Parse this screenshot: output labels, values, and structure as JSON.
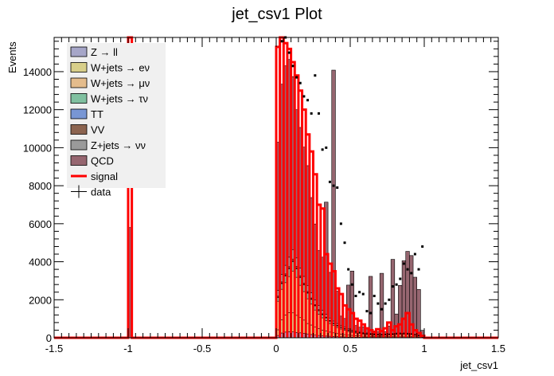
{
  "chart_data": {
    "type": "bar",
    "title": "jet_csv1 Plot",
    "xlabel": "jet_csv1",
    "ylabel": "Events",
    "xlim": [
      -1.5,
      1.5
    ],
    "ylim": [
      0,
      15800
    ],
    "x_ticks": [
      "-1.5",
      "-1",
      "-0.5",
      "0",
      "0.5",
      "1",
      "1.5"
    ],
    "y_ticks": [
      "0",
      "2000",
      "4000",
      "6000",
      "8000",
      "10000",
      "12000",
      "14000"
    ],
    "legend_position": "top-left",
    "bin_width": 0.025,
    "bin_edges_note": "bins of width 0.025 from -1.5 to 1.5",
    "x": [
      -1.0,
      0.0,
      0.025,
      0.05,
      0.075,
      0.1,
      0.125,
      0.15,
      0.175,
      0.2,
      0.225,
      0.25,
      0.275,
      0.3,
      0.325,
      0.35,
      0.375,
      0.4,
      0.425,
      0.45,
      0.475,
      0.5,
      0.525,
      0.55,
      0.575,
      0.6,
      0.625,
      0.65,
      0.675,
      0.7,
      0.725,
      0.75,
      0.775,
      0.8,
      0.825,
      0.85,
      0.875,
      0.9,
      0.925,
      0.95,
      0.975
    ],
    "series": [
      {
        "name": "Z → ll",
        "color": "#a6a6c8",
        "values": [
          0,
          120,
          250,
          300,
          320,
          310,
          280,
          260,
          230,
          200,
          170,
          140,
          120,
          100,
          90,
          80,
          70,
          60,
          50,
          45,
          40,
          35,
          30,
          30,
          25,
          25,
          20,
          20,
          20,
          20,
          20,
          20,
          20,
          20,
          20,
          20,
          20,
          20,
          15,
          15,
          10
        ]
      },
      {
        "name": "W+jets → eν",
        "color": "#d8cf8a",
        "values": [
          0,
          300,
          700,
          900,
          1000,
          1000,
          900,
          800,
          700,
          550,
          500,
          420,
          360,
          300,
          260,
          220,
          190,
          160,
          140,
          120,
          100,
          90,
          80,
          70,
          60,
          55,
          50,
          45,
          45,
          40,
          45,
          45,
          50,
          60,
          60,
          60,
          55,
          50,
          40,
          30,
          20
        ]
      },
      {
        "name": "W+jets → μν",
        "color": "#e4bc8c",
        "values": [
          0,
          1500,
          1600,
          1700,
          1900,
          2200,
          2000,
          1700,
          1500,
          1300,
          1100,
          900,
          750,
          650,
          550,
          450,
          380,
          320,
          270,
          230,
          190,
          160,
          140,
          120,
          100,
          90,
          80,
          70,
          65,
          60,
          70,
          75,
          80,
          95,
          100,
          100,
          95,
          90,
          70,
          50,
          30
        ]
      },
      {
        "name": "W+jets → τν",
        "color": "#80c0a0",
        "values": [
          0,
          200,
          300,
          350,
          400,
          500,
          450,
          400,
          350,
          300,
          250,
          220,
          190,
          160,
          140,
          120,
          100,
          85,
          75,
          65,
          55,
          50,
          45,
          40,
          35,
          30,
          30,
          25,
          25,
          25,
          25,
          25,
          30,
          30,
          30,
          30,
          30,
          25,
          20,
          15,
          10
        ]
      },
      {
        "name": "TT",
        "color": "#7896d4",
        "values": [
          0,
          20,
          30,
          40,
          40,
          40,
          40,
          35,
          30,
          30,
          25,
          20,
          20,
          15,
          15,
          15,
          10,
          10,
          10,
          10,
          10,
          10,
          10,
          10,
          10,
          10,
          10,
          10,
          10,
          10,
          10,
          10,
          10,
          10,
          10,
          10,
          10,
          10,
          10,
          5,
          5
        ]
      },
      {
        "name": "VV",
        "color": "#8c6450",
        "values": [
          0,
          50,
          60,
          70,
          80,
          90,
          80,
          70,
          60,
          55,
          50,
          45,
          40,
          35,
          30,
          25,
          20,
          20,
          15,
          15,
          15,
          10,
          10,
          10,
          10,
          10,
          10,
          10,
          10,
          10,
          10,
          10,
          10,
          10,
          10,
          10,
          10,
          10,
          10,
          10,
          5
        ]
      },
      {
        "name": "Z+jets → νν",
        "color": "#9a9a9a",
        "values": [
          0,
          300,
          400,
          450,
          500,
          500,
          450,
          400,
          360,
          320,
          280,
          240,
          210,
          180,
          150,
          130,
          110,
          95,
          80,
          70,
          60,
          55,
          50,
          45,
          40,
          35,
          30,
          30,
          25,
          25,
          25,
          25,
          25,
          25,
          25,
          25,
          25,
          20,
          20,
          15,
          10
        ]
      },
      {
        "name": "QCD",
        "color": "#966670",
        "values": [
          5800,
          7800,
          10000,
          10500,
          10400,
          9100,
          7800,
          7400,
          6800,
          6300,
          5000,
          4000,
          2900,
          2800,
          5900,
          2400,
          13200,
          1700,
          500,
          460,
          2300,
          3100,
          280,
          230,
          300,
          200,
          3000,
          150,
          130,
          3200,
          120,
          400,
          3900,
          1000,
          2500,
          3800,
          4300,
          4100,
          3000,
          2400,
          300
        ]
      }
    ],
    "signal": {
      "name": "signal",
      "color": "#ff0000",
      "x": [
        -1.0,
        0.0,
        0.025,
        0.05,
        0.075,
        0.1,
        0.125,
        0.15,
        0.175,
        0.2,
        0.225,
        0.25,
        0.275,
        0.3,
        0.325,
        0.35,
        0.375,
        0.4,
        0.425,
        0.45,
        0.475,
        0.5,
        0.525,
        0.55,
        0.575,
        0.6,
        0.625,
        0.65,
        0.675,
        0.7,
        0.725,
        0.75,
        0.775,
        0.8,
        0.825,
        0.85,
        0.875,
        0.9,
        0.925,
        0.95,
        0.975
      ],
      "values": [
        16000,
        15300,
        16000,
        15500,
        15200,
        14500,
        13800,
        13000,
        12000,
        10700,
        9800,
        8600,
        7000,
        6800,
        4400,
        3900,
        3500,
        2600,
        2300,
        1700,
        1500,
        1300,
        1000,
        900,
        700,
        500,
        400,
        300,
        450,
        350,
        500,
        800,
        400,
        600,
        700,
        1000,
        1300,
        700,
        400,
        250,
        100
      ]
    },
    "data": {
      "name": "data",
      "color": "#000000",
      "x": [
        0.0,
        0.025,
        0.05,
        0.075,
        0.1,
        0.125,
        0.15,
        0.175,
        0.2,
        0.225,
        0.25,
        0.275,
        0.3,
        0.325,
        0.35,
        0.375,
        0.4,
        0.425,
        0.45,
        0.475,
        0.5,
        0.525,
        0.55,
        0.575,
        0.6,
        0.625,
        0.65,
        0.675,
        0.7,
        0.725,
        0.75,
        0.775,
        0.8,
        0.825,
        0.85,
        0.875,
        0.9,
        0.925,
        0.95,
        0.975
      ],
      "values": [
        15900,
        15600,
        15800,
        15000,
        14300,
        13700,
        13400,
        12700,
        12500,
        11800,
        13800,
        11800,
        9900,
        10000,
        8200,
        8000,
        7900,
        6000,
        5000,
        3600,
        2800,
        2200,
        2400,
        2300,
        1400,
        1300,
        2200,
        1800,
        1500,
        1800,
        2000,
        2700,
        2800,
        3100,
        3900,
        3600,
        3400,
        4400,
        3600,
        4800
      ]
    }
  }
}
